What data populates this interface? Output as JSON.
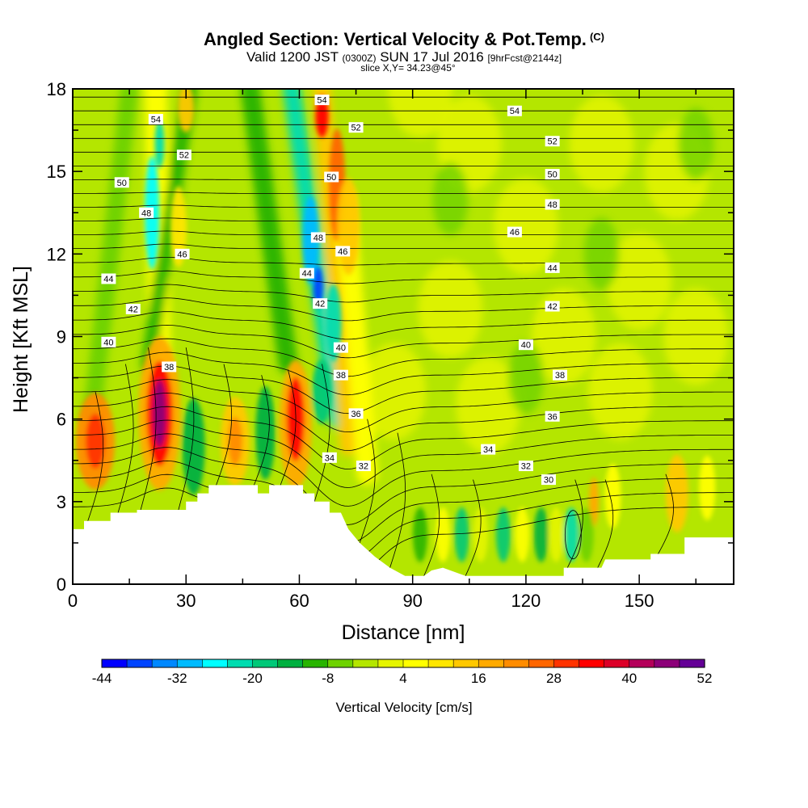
{
  "header": {
    "title_main": "Angled Section: Vertical Velocity & Pot.Temp.",
    "title_badge": "(C)",
    "subtitle_a": "Valid 1200 JST",
    "subtitle_b": "(0300Z)",
    "subtitle_c": "SUN 17 Jul 2016",
    "subtitle_d": "[9hrFcst@2144z]",
    "slice": "slice X,Y= 34.23@45°"
  },
  "chart_data": {
    "type": "heatmap",
    "xlabel": "Distance [nm]",
    "ylabel": "Height [Kft MSL]",
    "xlim": [
      0,
      175
    ],
    "ylim": [
      0,
      18
    ],
    "xticks": [
      0,
      30,
      60,
      90,
      120,
      150
    ],
    "yticks": [
      0,
      3,
      6,
      9,
      12,
      15,
      18
    ],
    "colorbar": {
      "label": "Vertical Velocity [cm/s]",
      "tick_labels": [
        "-44",
        "-32",
        "-20",
        "-8",
        "4",
        "16",
        "28",
        "40",
        "52"
      ],
      "colors": [
        "#0000ff",
        "#0044ff",
        "#0088ff",
        "#00bbff",
        "#00ffff",
        "#00dcb0",
        "#00c878",
        "#00b040",
        "#28b400",
        "#6ed200",
        "#b4e600",
        "#e6f500",
        "#ffff00",
        "#ffe600",
        "#ffc800",
        "#ffaa00",
        "#ff8c00",
        "#ff6600",
        "#ff3300",
        "#ff0000",
        "#dc0028",
        "#b4005a",
        "#8c0078",
        "#640096"
      ]
    },
    "terrain": [
      [
        0,
        2
      ],
      [
        3,
        2
      ],
      [
        3,
        2.3
      ],
      [
        10,
        2.3
      ],
      [
        10,
        2.6
      ],
      [
        17,
        2.6
      ],
      [
        17,
        2.7
      ],
      [
        30,
        2.7
      ],
      [
        30,
        3
      ],
      [
        33,
        3
      ],
      [
        33,
        3.3
      ],
      [
        36,
        3.3
      ],
      [
        36,
        3.6
      ],
      [
        49,
        3.6
      ],
      [
        49,
        3.3
      ],
      [
        52,
        3.3
      ],
      [
        52,
        3.6
      ],
      [
        61,
        3.6
      ],
      [
        61,
        3.3
      ],
      [
        64,
        3.3
      ],
      [
        64,
        3
      ],
      [
        68,
        3
      ],
      [
        68,
        2.6
      ],
      [
        71,
        2.6
      ],
      [
        73,
        2
      ],
      [
        76,
        1.5
      ],
      [
        80,
        1
      ],
      [
        84,
        0.6
      ],
      [
        88,
        0.3
      ],
      [
        93,
        0.3
      ],
      [
        95,
        0.5
      ],
      [
        98,
        0.6
      ],
      [
        104,
        0.3
      ],
      [
        130,
        0.3
      ],
      [
        130,
        0.6
      ],
      [
        140,
        0.6
      ],
      [
        141,
        0.9
      ],
      [
        153,
        0.9
      ],
      [
        153,
        1.1
      ],
      [
        162,
        1.1
      ],
      [
        162,
        1.7
      ],
      [
        175,
        1.7
      ]
    ],
    "theta_labels": [
      {
        "text": "54",
        "x": 22,
        "y": 16.9
      },
      {
        "text": "52",
        "x": 29.5,
        "y": 15.6
      },
      {
        "text": "50",
        "x": 13,
        "y": 14.6
      },
      {
        "text": "48",
        "x": 19.5,
        "y": 13.5
      },
      {
        "text": "46",
        "x": 29,
        "y": 12
      },
      {
        "text": "44",
        "x": 9.5,
        "y": 11.1
      },
      {
        "text": "42",
        "x": 16,
        "y": 10
      },
      {
        "text": "40",
        "x": 9.5,
        "y": 8.8
      },
      {
        "text": "38",
        "x": 25.5,
        "y": 7.9
      },
      {
        "text": "54",
        "x": 66,
        "y": 17.6
      },
      {
        "text": "52",
        "x": 75,
        "y": 16.6
      },
      {
        "text": "50",
        "x": 68.5,
        "y": 14.8
      },
      {
        "text": "48",
        "x": 65,
        "y": 12.6
      },
      {
        "text": "46",
        "x": 71.5,
        "y": 12.1
      },
      {
        "text": "44",
        "x": 62,
        "y": 11.3
      },
      {
        "text": "42",
        "x": 65.5,
        "y": 10.2
      },
      {
        "text": "40",
        "x": 71,
        "y": 8.6
      },
      {
        "text": "38",
        "x": 71,
        "y": 7.6
      },
      {
        "text": "36",
        "x": 75,
        "y": 6.2
      },
      {
        "text": "34",
        "x": 68,
        "y": 4.6
      },
      {
        "text": "32",
        "x": 77,
        "y": 4.3
      },
      {
        "text": "54",
        "x": 117,
        "y": 17.2
      },
      {
        "text": "52",
        "x": 127,
        "y": 16.1
      },
      {
        "text": "50",
        "x": 127,
        "y": 14.9
      },
      {
        "text": "48",
        "x": 127,
        "y": 13.8
      },
      {
        "text": "46",
        "x": 117,
        "y": 12.8
      },
      {
        "text": "44",
        "x": 127,
        "y": 11.5
      },
      {
        "text": "42",
        "x": 127,
        "y": 10.1
      },
      {
        "text": "40",
        "x": 120,
        "y": 8.7
      },
      {
        "text": "38",
        "x": 129,
        "y": 7.6
      },
      {
        "text": "36",
        "x": 127,
        "y": 6.1
      },
      {
        "text": "34",
        "x": 110,
        "y": 4.9
      },
      {
        "text": "32",
        "x": 120,
        "y": 4.3
      },
      {
        "text": "30",
        "x": 126,
        "y": 3.8
      }
    ]
  }
}
